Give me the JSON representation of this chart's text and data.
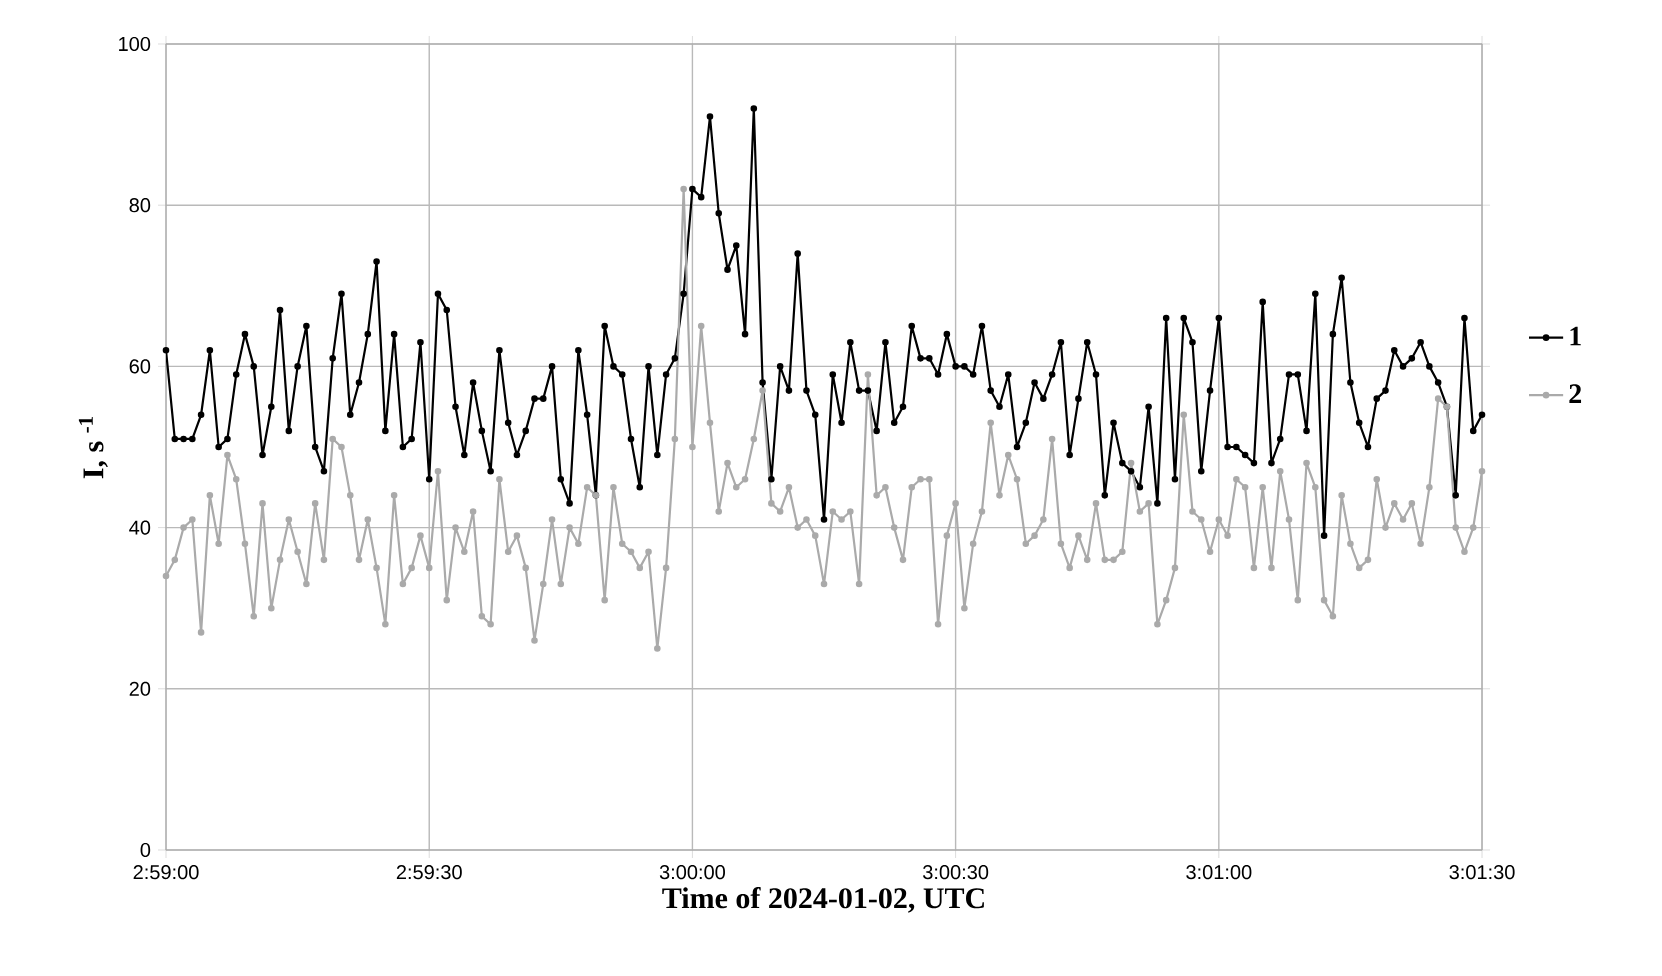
{
  "chart_data": {
    "type": "line",
    "xlabel": "Time of  2024-01-02, UTC",
    "ylabel": "I, s $^{-1}$",
    "x": [
      2.983333,
      2.983611,
      2.983889,
      2.984167,
      2.984444,
      2.984722,
      2.985,
      2.985278,
      2.985556,
      2.985833,
      2.986111,
      2.986389,
      2.986667,
      2.986944,
      2.987222,
      2.9875,
      2.987778,
      2.988056,
      2.988333,
      2.988611,
      2.988889,
      2.989167,
      2.989444,
      2.989722,
      2.99,
      2.990278,
      2.990556,
      2.990833,
      2.991111,
      2.991389,
      2.991667,
      2.991944,
      2.992222,
      2.9925,
      2.992778,
      2.993056,
      2.993333,
      2.993611,
      2.993889,
      2.994167,
      2.994444,
      2.994722,
      2.995,
      2.995278,
      2.995556,
      2.995833,
      2.996111,
      2.996389,
      2.996667,
      2.996944,
      2.997222,
      2.9975,
      2.997778,
      2.998056,
      2.998333,
      2.998611,
      2.998889,
      2.999167,
      2.999444,
      2.999722,
      3.0,
      3.000278,
      3.000556,
      3.000833,
      3.001111,
      3.001389,
      3.001667,
      3.001944,
      3.002222,
      3.0025,
      3.002778,
      3.003056,
      3.003333,
      3.003611,
      3.003889,
      3.004167,
      3.004444,
      3.004722,
      3.005,
      3.005278,
      3.005556,
      3.005833,
      3.006111,
      3.006389,
      3.006667,
      3.006944,
      3.007222,
      3.0075,
      3.007778,
      3.008056,
      3.008333,
      3.008611,
      3.008889,
      3.009167,
      3.009444,
      3.009722,
      3.01,
      3.010278,
      3.010556,
      3.010833,
      3.011111,
      3.011389,
      3.011667,
      3.011944,
      3.012222,
      3.0125,
      3.012778,
      3.013056,
      3.013333,
      3.013611,
      3.013889,
      3.014167,
      3.014444,
      3.014722,
      3.015,
      3.015278,
      3.015556,
      3.015833,
      3.016111,
      3.016389,
      3.016667,
      3.016944,
      3.017222,
      3.0175,
      3.017778,
      3.018056,
      3.018333,
      3.018611,
      3.018889,
      3.019167,
      3.019444,
      3.019722,
      3.02,
      3.020278,
      3.020556,
      3.020833,
      3.021111,
      3.021389,
      3.021667,
      3.021944,
      3.022222,
      3.0225,
      3.022778,
      3.023056,
      3.023333,
      3.023611,
      3.023889,
      3.024167,
      3.024444,
      3.024722,
      3.025
    ],
    "series": [
      {
        "name": "1",
        "color": "#000000",
        "values": [
          62,
          51,
          51,
          51,
          54,
          62,
          50,
          51,
          59,
          64,
          60,
          49,
          55,
          67,
          52,
          60,
          65,
          50,
          47,
          61,
          69,
          54,
          58,
          64,
          73,
          52,
          64,
          50,
          51,
          63,
          46,
          69,
          67,
          55,
          49,
          58,
          52,
          47,
          62,
          53,
          49,
          52,
          56,
          56,
          60,
          46,
          43,
          62,
          54,
          44,
          65,
          60,
          59,
          51,
          45,
          60,
          49,
          59,
          61,
          69,
          82,
          81,
          91,
          79,
          72,
          75,
          64,
          92,
          58,
          46,
          60,
          57,
          74,
          57,
          54,
          41,
          59,
          53,
          63,
          57,
          57,
          52,
          63,
          53,
          55,
          65,
          61,
          61,
          59,
          64,
          60,
          60,
          59,
          65,
          57,
          55,
          59,
          50,
          53,
          58,
          56,
          59,
          63,
          49,
          56,
          63,
          59,
          44,
          53,
          48,
          47,
          45,
          55,
          43,
          66,
          46,
          66,
          63,
          47,
          57,
          66,
          50,
          50,
          49,
          48,
          68,
          48,
          51,
          59,
          59,
          52,
          69,
          39,
          64,
          71,
          58,
          53,
          50,
          56,
          57,
          62,
          60,
          61,
          63,
          60,
          58,
          55,
          44,
          66,
          52,
          54
        ]
      },
      {
        "name": "2",
        "color": "#aaaaaa",
        "values": [
          34,
          36,
          40,
          41,
          27,
          44,
          38,
          49,
          46,
          38,
          29,
          43,
          30,
          36,
          41,
          37,
          33,
          43,
          36,
          51,
          50,
          44,
          36,
          41,
          35,
          28,
          44,
          33,
          35,
          39,
          35,
          47,
          31,
          40,
          37,
          42,
          29,
          28,
          46,
          37,
          39,
          35,
          26,
          33,
          41,
          33,
          40,
          38,
          45,
          44,
          31,
          45,
          38,
          37,
          35,
          37,
          25,
          35,
          51,
          82,
          50,
          65,
          53,
          42,
          48,
          45,
          46,
          51,
          57,
          43,
          42,
          45,
          40,
          41,
          39,
          33,
          42,
          41,
          42,
          33,
          59,
          44,
          45,
          40,
          36,
          45,
          46,
          46,
          28,
          39,
          43,
          30,
          38,
          42,
          53,
          44,
          49,
          46,
          38,
          39,
          41,
          51,
          38,
          35,
          39,
          36,
          43,
          36,
          36,
          37,
          48,
          42,
          43,
          28,
          31,
          35,
          54,
          42,
          41,
          37,
          41,
          39,
          46,
          45,
          35,
          45,
          35,
          47,
          41,
          31,
          48,
          45,
          31,
          29,
          44,
          38,
          35,
          36,
          46,
          40,
          43,
          41,
          43,
          38,
          45,
          56,
          55,
          40,
          37,
          40,
          47
        ]
      }
    ],
    "xlim": [
      2.983333,
      3.025
    ],
    "xticks": [
      {
        "value": 2.983333,
        "label": "2:59:00"
      },
      {
        "value": 2.991667,
        "label": "2:59:30"
      },
      {
        "value": 3.0,
        "label": "3:00:00"
      },
      {
        "value": 3.008333,
        "label": "3:00:30"
      },
      {
        "value": 3.016667,
        "label": "3:01:00"
      },
      {
        "value": 3.025,
        "label": "3:01:30"
      }
    ],
    "ylim": [
      0,
      100
    ],
    "yticks": [
      0,
      20,
      40,
      60,
      80,
      100
    ],
    "grid": true,
    "legend": "right",
    "marker": "circle",
    "line_style": "solid"
  }
}
